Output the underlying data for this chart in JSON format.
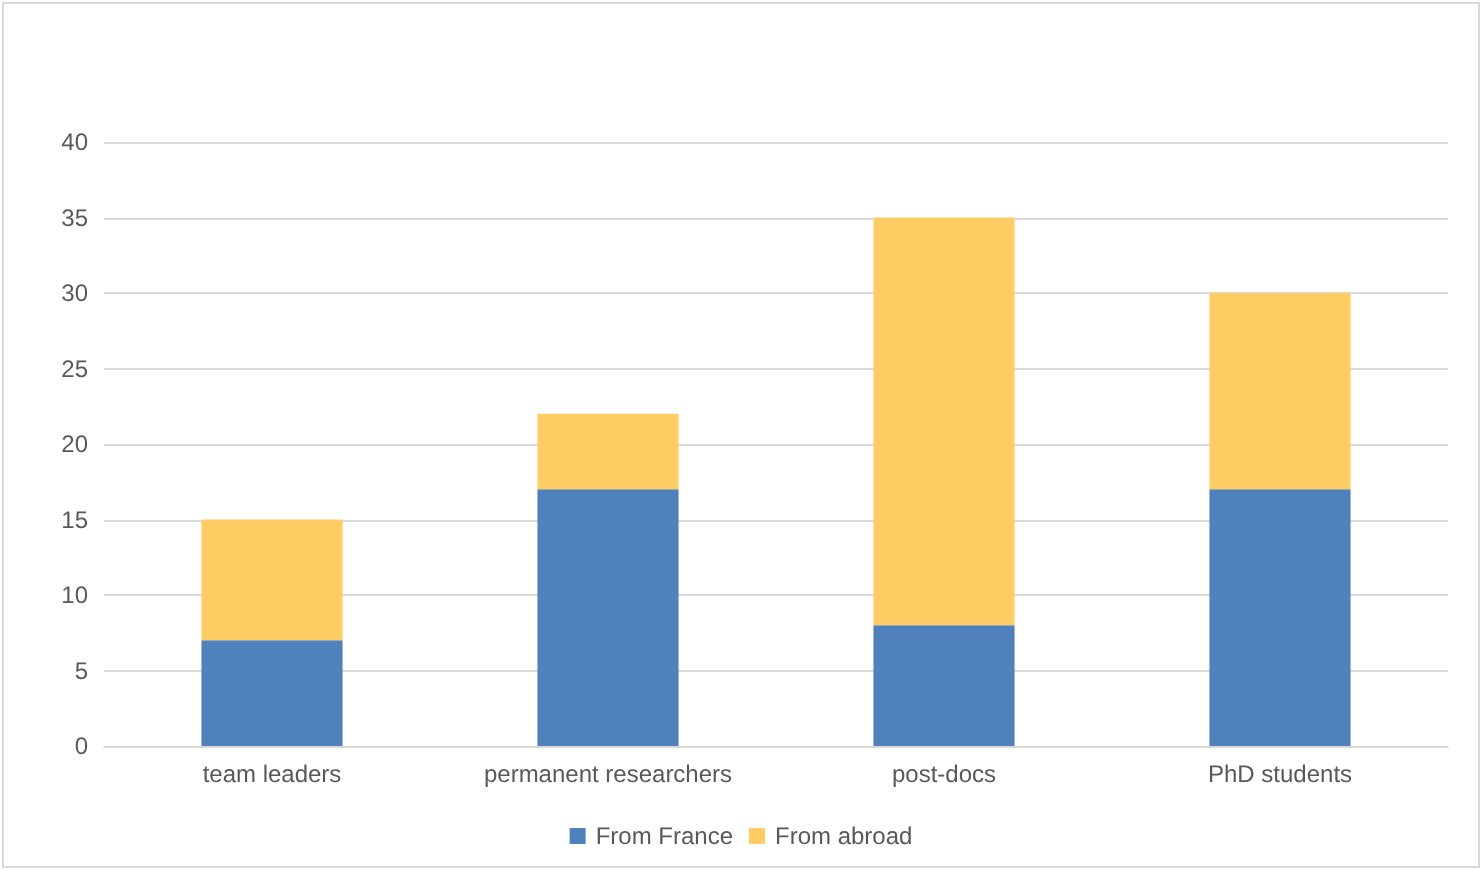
{
  "chart_data": {
    "type": "bar",
    "stacked": true,
    "categories": [
      "team leaders",
      "permanent researchers",
      "post-docs",
      "PhD students"
    ],
    "series": [
      {
        "name": "From France",
        "color": "#4f81bd",
        "values": [
          7,
          17,
          8,
          17
        ]
      },
      {
        "name": "From abroad",
        "color": "#ffcb63",
        "values": [
          8,
          5,
          27,
          13
        ]
      }
    ],
    "ylim": [
      0,
      40
    ],
    "yticks": [
      0,
      5,
      10,
      15,
      20,
      25,
      30,
      35,
      40
    ],
    "grid": "y",
    "legend": "bottom"
  }
}
